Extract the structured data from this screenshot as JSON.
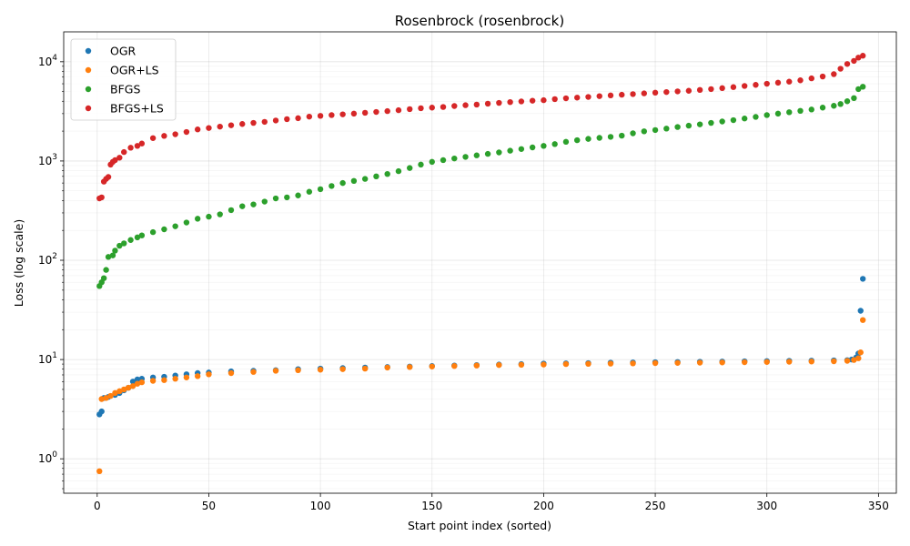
{
  "chart_data": {
    "type": "scatter",
    "title": "Rosenbrock (rosenbrock)",
    "xlabel": "Start point index (sorted)",
    "ylabel": "Loss (log scale)",
    "xlim": [
      -15,
      358
    ],
    "ylim": [
      0.45,
      20000
    ],
    "yscale": "log",
    "x_ticks": [
      0,
      50,
      100,
      150,
      200,
      250,
      300,
      350
    ],
    "y_ticks": [
      {
        "value": 1,
        "base": "10",
        "exp": "0"
      },
      {
        "value": 10,
        "base": "10",
        "exp": "1"
      },
      {
        "value": 100,
        "base": "10",
        "exp": "2"
      },
      {
        "value": 1000,
        "base": "10",
        "exp": "3"
      },
      {
        "value": 10000,
        "base": "10",
        "exp": "4"
      }
    ],
    "grid": true,
    "legend_position": "top-left",
    "series": [
      {
        "name": "OGR",
        "color": "#1f77b4",
        "points": [
          [
            1,
            2.8
          ],
          [
            2,
            3.0
          ],
          [
            3,
            4.1
          ],
          [
            5,
            4.2
          ],
          [
            8,
            4.4
          ],
          [
            10,
            4.6
          ],
          [
            12,
            4.9
          ],
          [
            14,
            5.2
          ],
          [
            16,
            6.0
          ],
          [
            18,
            6.3
          ],
          [
            20,
            6.4
          ],
          [
            25,
            6.6
          ],
          [
            30,
            6.7
          ],
          [
            35,
            6.9
          ],
          [
            40,
            7.1
          ],
          [
            45,
            7.3
          ],
          [
            50,
            7.4
          ],
          [
            60,
            7.6
          ],
          [
            70,
            7.7
          ],
          [
            80,
            7.8
          ],
          [
            90,
            8.0
          ],
          [
            100,
            8.1
          ],
          [
            110,
            8.2
          ],
          [
            120,
            8.3
          ],
          [
            130,
            8.4
          ],
          [
            140,
            8.5
          ],
          [
            150,
            8.6
          ],
          [
            160,
            8.7
          ],
          [
            170,
            8.8
          ],
          [
            180,
            8.9
          ],
          [
            190,
            9.0
          ],
          [
            200,
            9.1
          ],
          [
            210,
            9.15
          ],
          [
            220,
            9.2
          ],
          [
            230,
            9.3
          ],
          [
            240,
            9.35
          ],
          [
            250,
            9.4
          ],
          [
            260,
            9.45
          ],
          [
            270,
            9.5
          ],
          [
            280,
            9.55
          ],
          [
            290,
            9.6
          ],
          [
            300,
            9.65
          ],
          [
            310,
            9.7
          ],
          [
            320,
            9.75
          ],
          [
            330,
            9.8
          ],
          [
            336,
            9.85
          ],
          [
            338,
            10.0
          ],
          [
            340,
            10.5
          ],
          [
            341,
            11.5
          ],
          [
            342,
            31
          ],
          [
            343,
            65
          ]
        ]
      },
      {
        "name": "OGR+LS",
        "color": "#ff7f0e",
        "points": [
          [
            1,
            0.75
          ],
          [
            2,
            4.0
          ],
          [
            4,
            4.1
          ],
          [
            6,
            4.3
          ],
          [
            8,
            4.6
          ],
          [
            10,
            4.8
          ],
          [
            12,
            5.0
          ],
          [
            14,
            5.2
          ],
          [
            16,
            5.4
          ],
          [
            18,
            5.7
          ],
          [
            20,
            5.9
          ],
          [
            25,
            6.1
          ],
          [
            30,
            6.2
          ],
          [
            35,
            6.4
          ],
          [
            40,
            6.6
          ],
          [
            45,
            6.8
          ],
          [
            50,
            7.1
          ],
          [
            60,
            7.3
          ],
          [
            70,
            7.5
          ],
          [
            80,
            7.7
          ],
          [
            90,
            7.8
          ],
          [
            100,
            7.9
          ],
          [
            110,
            8.0
          ],
          [
            120,
            8.1
          ],
          [
            130,
            8.3
          ],
          [
            140,
            8.4
          ],
          [
            150,
            8.5
          ],
          [
            160,
            8.6
          ],
          [
            170,
            8.7
          ],
          [
            180,
            8.8
          ],
          [
            190,
            8.85
          ],
          [
            200,
            8.9
          ],
          [
            210,
            9.0
          ],
          [
            220,
            9.05
          ],
          [
            230,
            9.1
          ],
          [
            240,
            9.15
          ],
          [
            250,
            9.2
          ],
          [
            260,
            9.25
          ],
          [
            270,
            9.3
          ],
          [
            280,
            9.35
          ],
          [
            290,
            9.4
          ],
          [
            300,
            9.45
          ],
          [
            310,
            9.5
          ],
          [
            320,
            9.55
          ],
          [
            330,
            9.6
          ],
          [
            336,
            9.7
          ],
          [
            339,
            9.9
          ],
          [
            341,
            10.3
          ],
          [
            342,
            11.8
          ],
          [
            343,
            25
          ]
        ]
      },
      {
        "name": "BFGS",
        "color": "#2ca02c",
        "points": [
          [
            1,
            55
          ],
          [
            2,
            60
          ],
          [
            3,
            66
          ],
          [
            4,
            80
          ],
          [
            5,
            108
          ],
          [
            7,
            112
          ],
          [
            8,
            125
          ],
          [
            10,
            140
          ],
          [
            12,
            148
          ],
          [
            15,
            160
          ],
          [
            18,
            170
          ],
          [
            20,
            178
          ],
          [
            25,
            192
          ],
          [
            30,
            205
          ],
          [
            35,
            220
          ],
          [
            40,
            240
          ],
          [
            45,
            262
          ],
          [
            50,
            275
          ],
          [
            55,
            290
          ],
          [
            60,
            320
          ],
          [
            65,
            350
          ],
          [
            70,
            365
          ],
          [
            75,
            390
          ],
          [
            80,
            420
          ],
          [
            85,
            430
          ],
          [
            90,
            450
          ],
          [
            95,
            490
          ],
          [
            100,
            520
          ],
          [
            105,
            560
          ],
          [
            110,
            600
          ],
          [
            115,
            630
          ],
          [
            120,
            660
          ],
          [
            125,
            700
          ],
          [
            130,
            740
          ],
          [
            135,
            790
          ],
          [
            140,
            850
          ],
          [
            145,
            920
          ],
          [
            150,
            980
          ],
          [
            155,
            1020
          ],
          [
            160,
            1060
          ],
          [
            165,
            1100
          ],
          [
            170,
            1140
          ],
          [
            175,
            1180
          ],
          [
            180,
            1220
          ],
          [
            185,
            1270
          ],
          [
            190,
            1320
          ],
          [
            195,
            1370
          ],
          [
            200,
            1420
          ],
          [
            205,
            1480
          ],
          [
            210,
            1560
          ],
          [
            215,
            1620
          ],
          [
            220,
            1670
          ],
          [
            225,
            1710
          ],
          [
            230,
            1750
          ],
          [
            235,
            1800
          ],
          [
            240,
            1900
          ],
          [
            245,
            1990
          ],
          [
            250,
            2050
          ],
          [
            255,
            2120
          ],
          [
            260,
            2200
          ],
          [
            265,
            2270
          ],
          [
            270,
            2340
          ],
          [
            275,
            2420
          ],
          [
            280,
            2500
          ],
          [
            285,
            2580
          ],
          [
            290,
            2680
          ],
          [
            295,
            2780
          ],
          [
            300,
            2900
          ],
          [
            305,
            3000
          ],
          [
            310,
            3100
          ],
          [
            315,
            3200
          ],
          [
            320,
            3300
          ],
          [
            325,
            3450
          ],
          [
            330,
            3600
          ],
          [
            333,
            3750
          ],
          [
            336,
            4000
          ],
          [
            339,
            4300
          ],
          [
            341,
            5300
          ],
          [
            343,
            5600
          ]
        ]
      },
      {
        "name": "BFGS+LS",
        "color": "#d62728",
        "points": [
          [
            1,
            420
          ],
          [
            2,
            430
          ],
          [
            3,
            620
          ],
          [
            4,
            660
          ],
          [
            5,
            690
          ],
          [
            6,
            920
          ],
          [
            7,
            980
          ],
          [
            8,
            1020
          ],
          [
            10,
            1080
          ],
          [
            12,
            1230
          ],
          [
            15,
            1360
          ],
          [
            18,
            1420
          ],
          [
            20,
            1500
          ],
          [
            25,
            1700
          ],
          [
            30,
            1790
          ],
          [
            35,
            1860
          ],
          [
            40,
            1960
          ],
          [
            45,
            2080
          ],
          [
            50,
            2150
          ],
          [
            55,
            2220
          ],
          [
            60,
            2290
          ],
          [
            65,
            2360
          ],
          [
            70,
            2420
          ],
          [
            75,
            2480
          ],
          [
            80,
            2560
          ],
          [
            85,
            2640
          ],
          [
            90,
            2700
          ],
          [
            95,
            2800
          ],
          [
            100,
            2850
          ],
          [
            105,
            2900
          ],
          [
            110,
            2950
          ],
          [
            115,
            3000
          ],
          [
            120,
            3060
          ],
          [
            125,
            3120
          ],
          [
            130,
            3180
          ],
          [
            135,
            3250
          ],
          [
            140,
            3330
          ],
          [
            145,
            3400
          ],
          [
            150,
            3450
          ],
          [
            155,
            3500
          ],
          [
            160,
            3580
          ],
          [
            165,
            3650
          ],
          [
            170,
            3700
          ],
          [
            175,
            3780
          ],
          [
            180,
            3850
          ],
          [
            185,
            3920
          ],
          [
            190,
            3980
          ],
          [
            195,
            4050
          ],
          [
            200,
            4100
          ],
          [
            205,
            4200
          ],
          [
            210,
            4280
          ],
          [
            215,
            4350
          ],
          [
            220,
            4420
          ],
          [
            225,
            4500
          ],
          [
            230,
            4580
          ],
          [
            235,
            4650
          ],
          [
            240,
            4720
          ],
          [
            245,
            4800
          ],
          [
            250,
            4880
          ],
          [
            255,
            4950
          ],
          [
            260,
            5030
          ],
          [
            265,
            5100
          ],
          [
            270,
            5200
          ],
          [
            275,
            5300
          ],
          [
            280,
            5420
          ],
          [
            285,
            5550
          ],
          [
            290,
            5700
          ],
          [
            295,
            5850
          ],
          [
            300,
            6000
          ],
          [
            305,
            6150
          ],
          [
            310,
            6300
          ],
          [
            315,
            6500
          ],
          [
            320,
            6800
          ],
          [
            325,
            7100
          ],
          [
            330,
            7500
          ],
          [
            333,
            8500
          ],
          [
            336,
            9500
          ],
          [
            339,
            10200
          ],
          [
            341,
            11000
          ],
          [
            343,
            11500
          ]
        ]
      }
    ]
  }
}
